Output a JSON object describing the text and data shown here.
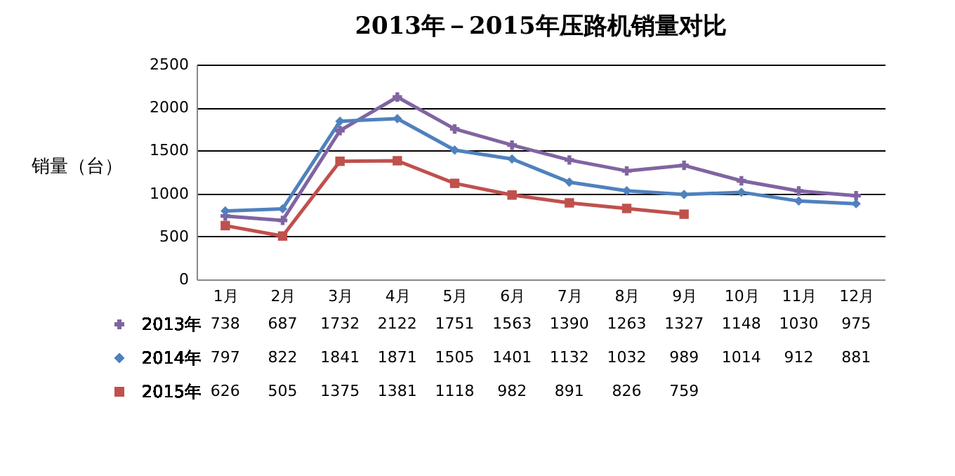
{
  "chart_data": {
    "type": "line",
    "title": "2013年－2015年压路机销量对比",
    "ylabel": "销量（台）",
    "categories": [
      "1月",
      "2月",
      "3月",
      "4月",
      "5月",
      "6月",
      "7月",
      "8月",
      "9月",
      "10月",
      "11月",
      "12月"
    ],
    "series": [
      {
        "name": "2013年",
        "color": "#8064a2",
        "marker": "cross",
        "values": [
          738,
          687,
          1732,
          2122,
          1751,
          1563,
          1390,
          1263,
          1327,
          1148,
          1030,
          975
        ]
      },
      {
        "name": "2014年",
        "color": "#4f81bd",
        "marker": "diamond",
        "values": [
          797,
          822,
          1841,
          1871,
          1505,
          1401,
          1132,
          1032,
          989,
          1014,
          912,
          881
        ]
      },
      {
        "name": "2015年",
        "color": "#c0504d",
        "marker": "square",
        "values": [
          626,
          505,
          1375,
          1381,
          1118,
          982,
          891,
          826,
          759,
          null,
          null,
          null
        ]
      }
    ],
    "ylim": [
      0,
      2500
    ],
    "yticks": [
      0,
      500,
      1000,
      1500,
      2000,
      2500
    ],
    "grid": "y",
    "legend": "bottom left",
    "data_labels": true
  }
}
